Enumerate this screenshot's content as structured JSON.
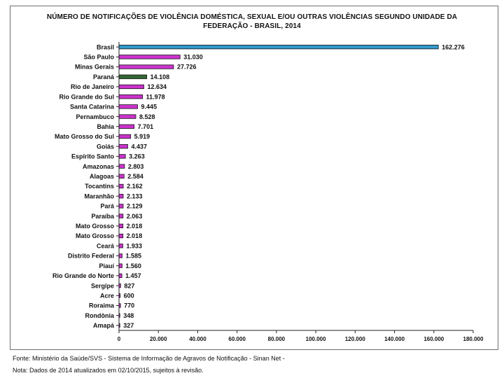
{
  "chart_data": {
    "type": "bar",
    "orientation": "horizontal",
    "title_line1": "NÚMERO DE NOTIFICAÇÕES DE VIOLÊNCIA DOMÉSTICA, SEXUAL E/OU OUTRAS VIOLÊNCIAS SEGUNDO UNIDADE DA",
    "title_line2": "FEDERAÇÃO - BRASIL, 2014",
    "categories": [
      "Brasil",
      "São Paulo",
      "Minas Gerais",
      "Paraná",
      "Rio de Janeiro",
      "Rio Grande do Sul",
      "Santa Catarina",
      "Pernambuco",
      "Bahia",
      "Mato Grosso do Sul",
      "Goiás",
      "Espírito Santo",
      "Amazonas",
      "Alagoas",
      "Tocantins",
      "Maranhão",
      "Pará",
      "Paraíba",
      "Mato Grosso",
      "Mato Grosso",
      "Ceará",
      "Distrito Federal",
      "Piauí",
      "Rio Grande do Norte",
      "Sergipe",
      "Acre",
      "Roraima",
      "Rondônia",
      "Amapá"
    ],
    "values": [
      162276,
      31030,
      27726,
      14108,
      12634,
      11978,
      9445,
      8528,
      7701,
      5919,
      4437,
      3263,
      2803,
      2584,
      2162,
      2133,
      2129,
      2063,
      2018,
      2018,
      1933,
      1585,
      1560,
      1457,
      827,
      600,
      770,
      348,
      327
    ],
    "value_labels": [
      "162.276",
      "31.030",
      "27.726",
      "14.108",
      "12.634",
      "11.978",
      "9.445",
      "8.528",
      "7.701",
      "5.919",
      "4.437",
      "3.263",
      "2.803",
      "2.584",
      "2.162",
      "2.133",
      "2.129",
      "2.063",
      "2.018",
      "2.018",
      "1.933",
      "1.585",
      "1.560",
      "1.457",
      "827",
      "600",
      "770",
      "348",
      "327"
    ],
    "bar_colors": [
      "#3399cc",
      "#cc33cc",
      "#cc33cc",
      "#336633",
      "#cc33cc",
      "#cc33cc",
      "#cc33cc",
      "#cc33cc",
      "#cc33cc",
      "#cc33cc",
      "#cc33cc",
      "#cc33cc",
      "#cc33cc",
      "#cc33cc",
      "#cc33cc",
      "#cc33cc",
      "#cc33cc",
      "#cc33cc",
      "#cc33cc",
      "#cc33cc",
      "#cc33cc",
      "#cc33cc",
      "#cc33cc",
      "#cc33cc",
      "#cc33cc",
      "#cc33cc",
      "#cc33cc",
      "#cc33cc",
      "#cc33cc"
    ],
    "xlim": [
      0,
      180000
    ],
    "x_ticks": [
      0,
      20000,
      40000,
      60000,
      80000,
      100000,
      120000,
      140000,
      160000,
      180000
    ],
    "x_tick_labels": [
      "0",
      "20.000",
      "40.000",
      "60.000",
      "80.000",
      "100.000",
      "120.000",
      "140.000",
      "160.000",
      "180.000"
    ],
    "grid": false
  },
  "footer": {
    "source": "Fonte: Ministério da Saúde/SVS - Sistema de Informação de Agravos de Notificação - Sinan Net -",
    "note": "Nota:  Dados de 2014 atualizados em 02/10/2015, sujeitos à revisão."
  }
}
